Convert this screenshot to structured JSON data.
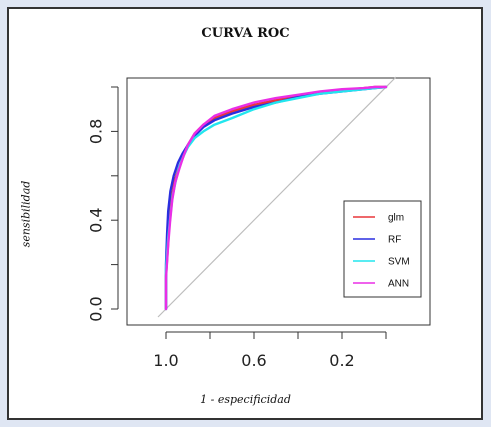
{
  "chart_data": {
    "type": "line",
    "title": "CURVA ROC",
    "xlabel": "1 - especificidad",
    "ylabel": "sensibilidad",
    "x_axis_reversed": true,
    "xlim": [
      1.0,
      0.0
    ],
    "ylim": [
      0.0,
      1.0
    ],
    "x_ticks": [
      1.0,
      0.8,
      0.6,
      0.4,
      0.2,
      0.0
    ],
    "x_tick_labels": [
      "1.0",
      "0.6",
      "0.2"
    ],
    "y_ticks": [
      0.0,
      0.2,
      0.4,
      0.6,
      0.8,
      1.0
    ],
    "y_tick_labels": [
      "0.0",
      "0.4",
      "0.8"
    ],
    "grid": false,
    "legend_position": "bottom-right",
    "reference_line": {
      "from": [
        1.0,
        0.0
      ],
      "to": [
        0.0,
        1.0
      ],
      "color": "#bdbdbd"
    },
    "series": [
      {
        "name": "glm",
        "color": "#e8363a",
        "x": [
          1.0,
          1.0,
          0.99,
          0.985,
          0.975,
          0.96,
          0.94,
          0.92,
          0.9,
          0.87,
          0.83,
          0.78,
          0.7,
          0.6,
          0.5,
          0.4,
          0.3,
          0.2,
          0.1,
          0.05,
          0.0
        ],
        "y": [
          0.0,
          0.15,
          0.3,
          0.4,
          0.5,
          0.58,
          0.64,
          0.69,
          0.74,
          0.79,
          0.83,
          0.86,
          0.89,
          0.92,
          0.94,
          0.96,
          0.975,
          0.985,
          0.995,
          1.0,
          1.0
        ]
      },
      {
        "name": "RF",
        "color": "#2a2ee0",
        "x": [
          1.0,
          1.0,
          0.995,
          0.99,
          0.98,
          0.965,
          0.945,
          0.925,
          0.9,
          0.87,
          0.83,
          0.78,
          0.7,
          0.6,
          0.5,
          0.4,
          0.3,
          0.2,
          0.1,
          0.05,
          0.0
        ],
        "y": [
          0.0,
          0.2,
          0.34,
          0.44,
          0.53,
          0.6,
          0.66,
          0.7,
          0.74,
          0.78,
          0.82,
          0.85,
          0.88,
          0.91,
          0.93,
          0.955,
          0.97,
          0.98,
          0.99,
          0.995,
          1.0
        ]
      },
      {
        "name": "SVM",
        "color": "#22e6ee",
        "x": [
          1.0,
          1.0,
          0.99,
          0.98,
          0.97,
          0.955,
          0.94,
          0.92,
          0.9,
          0.87,
          0.83,
          0.78,
          0.7,
          0.6,
          0.5,
          0.4,
          0.3,
          0.2,
          0.1,
          0.05,
          0.0
        ],
        "y": [
          0.0,
          0.18,
          0.32,
          0.42,
          0.51,
          0.58,
          0.64,
          0.69,
          0.73,
          0.77,
          0.8,
          0.83,
          0.86,
          0.9,
          0.93,
          0.95,
          0.97,
          0.98,
          0.99,
          0.995,
          1.0
        ]
      },
      {
        "name": "ANN",
        "color": "#ea2ee6",
        "x": [
          1.0,
          1.0,
          0.99,
          0.982,
          0.972,
          0.958,
          0.94,
          0.92,
          0.9,
          0.87,
          0.83,
          0.78,
          0.7,
          0.6,
          0.5,
          0.4,
          0.3,
          0.2,
          0.1,
          0.05,
          0.0
        ],
        "y": [
          0.0,
          0.14,
          0.29,
          0.39,
          0.49,
          0.57,
          0.63,
          0.69,
          0.74,
          0.79,
          0.83,
          0.87,
          0.9,
          0.93,
          0.95,
          0.965,
          0.98,
          0.99,
          0.995,
          1.0,
          1.0
        ]
      }
    ]
  }
}
